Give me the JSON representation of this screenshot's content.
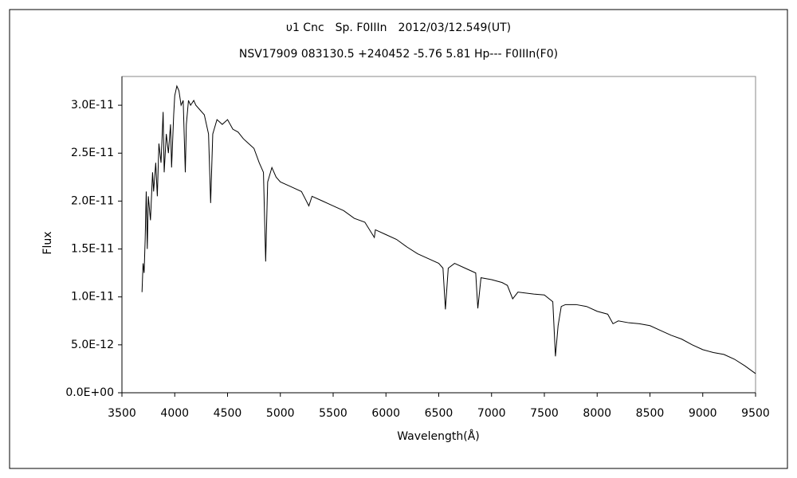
{
  "chart_data": {
    "type": "line",
    "title": "υ1 Cnc　Sp. F0IIIn　2012/03/12.549(UT)",
    "subtitle": "NSV17909 083130.5 +240452 -5.76 5.81 Hp--- F0IIIn(F0)",
    "x_label": "Wavelength(Å)",
    "y_label": "Flux",
    "xlim": [
      3500,
      9500
    ],
    "xticks": [
      3500,
      4000,
      4500,
      5000,
      5500,
      6000,
      6500,
      7000,
      7500,
      8000,
      8500,
      9000,
      9500
    ],
    "ylim": [
      0,
      3.3e-11
    ],
    "yticks": [
      {
        "value": 0,
        "label": "0.0E+00"
      },
      {
        "value": 5e-12,
        "label": "5.0E-12"
      },
      {
        "value": 1e-11,
        "label": "1.0E-11"
      },
      {
        "value": 1.5e-11,
        "label": "1.5E-11"
      },
      {
        "value": 2e-11,
        "label": "2.0E-11"
      },
      {
        "value": 2.5e-11,
        "label": "2.5E-11"
      },
      {
        "value": 3e-11,
        "label": "3.0E-11"
      }
    ],
    "grid": false,
    "series": [
      {
        "color": "#000000",
        "x": [
          3690,
          3700,
          3710,
          3720,
          3730,
          3740,
          3750,
          3770,
          3790,
          3800,
          3820,
          3835,
          3850,
          3870,
          3890,
          3900,
          3920,
          3940,
          3960,
          3970,
          3990,
          4000,
          4020,
          4040,
          4060,
          4080,
          4100,
          4110,
          4130,
          4150,
          4180,
          4200,
          4240,
          4280,
          4320,
          4340,
          4360,
          4400,
          4450,
          4500,
          4550,
          4600,
          4650,
          4700,
          4750,
          4800,
          4840,
          4861,
          4880,
          4920,
          4960,
          5000,
          5100,
          5200,
          5270,
          5300,
          5400,
          5500,
          5600,
          5700,
          5800,
          5890,
          5900,
          6000,
          6100,
          6200,
          6300,
          6400,
          6500,
          6540,
          6563,
          6590,
          6650,
          6750,
          6850,
          6870,
          6900,
          7000,
          7100,
          7150,
          7200,
          7250,
          7400,
          7500,
          7580,
          7605,
          7630,
          7660,
          7700,
          7800,
          7900,
          8000,
          8100,
          8150,
          8200,
          8300,
          8400,
          8500,
          8600,
          8700,
          8800,
          8900,
          9000,
          9100,
          9200,
          9300,
          9400,
          9500
        ],
        "values": [
          1.05e-11,
          1.35e-11,
          1.25e-11,
          1.6e-11,
          2.1e-11,
          1.5e-11,
          2.05e-11,
          1.8e-11,
          2.3e-11,
          2.1e-11,
          2.4e-11,
          2.05e-11,
          2.6e-11,
          2.4e-11,
          2.93e-11,
          2.3e-11,
          2.7e-11,
          2.5e-11,
          2.8e-11,
          2.35e-11,
          2.9e-11,
          3.1e-11,
          3.2e-11,
          3.15e-11,
          3e-11,
          3.05e-11,
          2.3e-11,
          2.8e-11,
          3.05e-11,
          3e-11,
          3.05e-11,
          3e-11,
          2.95e-11,
          2.9e-11,
          2.7e-11,
          1.98e-11,
          2.7e-11,
          2.85e-11,
          2.8e-11,
          2.85e-11,
          2.75e-11,
          2.72e-11,
          2.65e-11,
          2.6e-11,
          2.55e-11,
          2.4e-11,
          2.3e-11,
          1.37e-11,
          2.2e-11,
          2.35e-11,
          2.25e-11,
          2.2e-11,
          2.15e-11,
          2.1e-11,
          1.95e-11,
          2.05e-11,
          2e-11,
          1.95e-11,
          1.9e-11,
          1.82e-11,
          1.78e-11,
          1.62e-11,
          1.7e-11,
          1.65e-11,
          1.6e-11,
          1.52e-11,
          1.45e-11,
          1.4e-11,
          1.35e-11,
          1.3e-11,
          8.7e-12,
          1.3e-11,
          1.35e-11,
          1.3e-11,
          1.25e-11,
          8.8e-12,
          1.2e-11,
          1.18e-11,
          1.15e-11,
          1.12e-11,
          9.8e-12,
          1.05e-11,
          1.03e-11,
          1.02e-11,
          9.5e-12,
          3.8e-12,
          7e-12,
          9e-12,
          9.2e-12,
          9.2e-12,
          9e-12,
          8.5e-12,
          8.2e-12,
          7.2e-12,
          7.5e-12,
          7.3e-12,
          7.2e-12,
          7e-12,
          6.5e-12,
          6e-12,
          5.6e-12,
          5e-12,
          4.5e-12,
          4.2e-12,
          4e-12,
          3.5e-12,
          2.8e-12,
          2e-12
        ]
      }
    ]
  }
}
